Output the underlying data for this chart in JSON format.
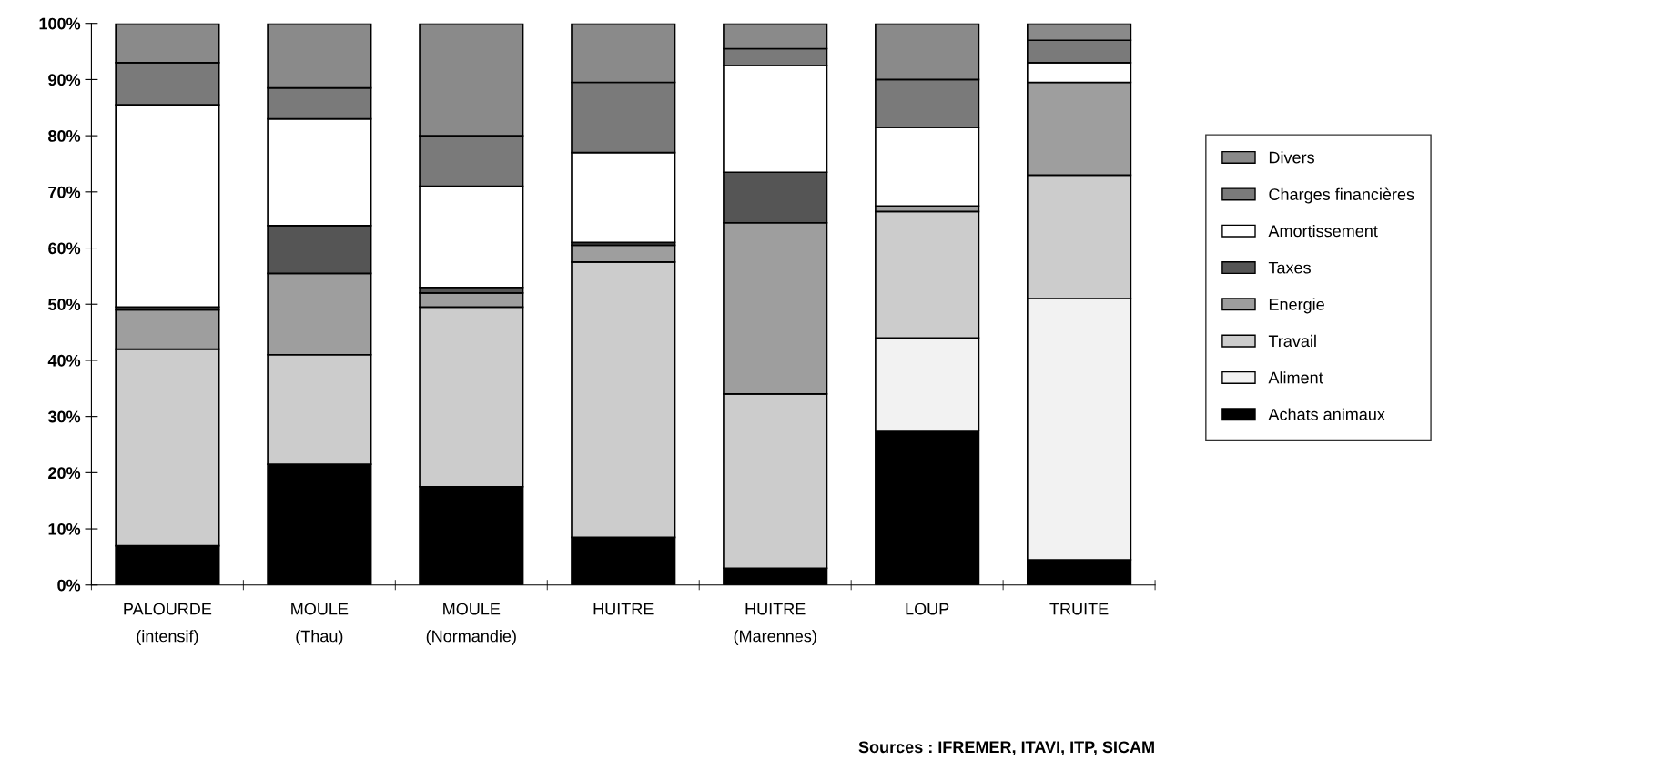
{
  "chart_data": {
    "type": "bar",
    "stacked": true,
    "categories": [
      "PALOURDE\n(intensif)",
      "MOULE\n(Thau)",
      "MOULE\n(Normandie)",
      "HUITRE",
      "HUITRE\n(Marennes)",
      "LOUP",
      "TRUITE"
    ],
    "series": [
      {
        "name": "Achats animaux",
        "color": "#000000",
        "values": [
          7,
          21.5,
          17.5,
          8.5,
          3,
          27.5,
          4.5
        ]
      },
      {
        "name": "Aliment",
        "color": "#f2f2f2",
        "values": [
          0,
          0,
          0,
          0,
          0,
          16.5,
          46.5
        ]
      },
      {
        "name": "Travail",
        "color": "#cccccc",
        "values": [
          35,
          19.5,
          32,
          49,
          31,
          22.5,
          22
        ]
      },
      {
        "name": "Energie",
        "color": "#9e9e9e",
        "values": [
          7,
          14.5,
          2.5,
          3,
          30.5,
          1,
          16.5
        ]
      },
      {
        "name": "Taxes",
        "color": "#555555",
        "values": [
          0.5,
          8.5,
          1,
          0.5,
          9,
          0,
          0
        ]
      },
      {
        "name": "Amortissement",
        "color": "#ffffff",
        "values": [
          36,
          19,
          18,
          16,
          19,
          14,
          3.5
        ]
      },
      {
        "name": "Charges financières",
        "color": "#7a7a7a",
        "values": [
          7.5,
          5.5,
          9,
          12.5,
          3,
          8.5,
          4
        ]
      },
      {
        "name": "Divers",
        "color": "#8a8a8a",
        "values": [
          7,
          11.5,
          20,
          10.5,
          4.5,
          10,
          3
        ]
      }
    ],
    "ylim": [
      0,
      100
    ],
    "yticks": [
      {
        "value": 0,
        "label": "0%"
      },
      {
        "value": 10,
        "label": "10%"
      },
      {
        "value": 20,
        "label": "20%"
      },
      {
        "value": 30,
        "label": "30%"
      },
      {
        "value": 40,
        "label": "40%"
      },
      {
        "value": 50,
        "label": "50%"
      },
      {
        "value": 60,
        "label": "60%"
      },
      {
        "value": 70,
        "label": "70%"
      },
      {
        "value": 80,
        "label": "80%"
      },
      {
        "value": 90,
        "label": "90%"
      },
      {
        "value": 100,
        "label": "100%"
      }
    ],
    "legend": "right",
    "grid": false,
    "annotations": [
      "Sources : IFREMER, ITAVI, ITP, SICAM"
    ]
  }
}
